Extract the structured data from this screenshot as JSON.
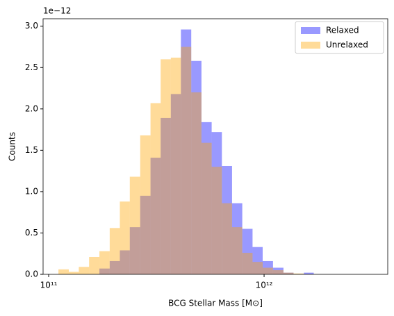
{
  "chart_data": {
    "type": "histogram",
    "xlabel": "BCG Stellar Mass [M⊙]",
    "ylabel": "Counts",
    "y_offset_label": "1e−12",
    "log_x": true,
    "legend": "upper right",
    "alpha": 0.4,
    "bins": [
      111000000000.0,
      124000000000.0,
      138000000000.0,
      154000000000.0,
      172000000000.0,
      192000000000.0,
      214000000000.0,
      238000000000.0,
      266000000000.0,
      297000000000.0,
      331000000000.0,
      369000000000.0,
      411000000000.0,
      459000000000.0,
      512000000000.0,
      571000000000.0,
      637000000000.0,
      710000000000.0,
      792000000000.0,
      884000000000.0,
      985000000000.0,
      1100000000000.0,
      1230000000000.0,
      1370000000000.0,
      1530000000000.0,
      1700000000000.0
    ],
    "series": [
      {
        "name": "Relaxed",
        "color": "#0000ff",
        "values": [
          0,
          0,
          0,
          0,
          0.07,
          0.16,
          0.29,
          0.57,
          0.95,
          1.41,
          1.89,
          2.18,
          2.96,
          2.58,
          1.84,
          1.72,
          1.31,
          0.86,
          0.55,
          0.33,
          0.16,
          0.08,
          0.02,
          0,
          0.02
        ]
      },
      {
        "name": "Unrelaxed",
        "color": "#ffa500",
        "values": [
          0.06,
          0.03,
          0.09,
          0.21,
          0.28,
          0.56,
          0.88,
          1.18,
          1.68,
          2.07,
          2.6,
          2.62,
          2.75,
          2.2,
          1.59,
          1.3,
          0.86,
          0.57,
          0.26,
          0.15,
          0.08,
          0.05,
          0.02,
          0.01,
          0
        ]
      }
    ],
    "xlim": [
      94200000000.0,
      3750000000000.0
    ],
    "xticks": [
      {
        "value": 100000000000.0,
        "label": "10¹¹"
      },
      {
        "value": 1000000000000.0,
        "label": "10¹²"
      }
    ],
    "ylim": [
      0,
      3.09
    ],
    "yticks": [
      {
        "value": 0,
        "label": "0.0"
      },
      {
        "value": 0.5,
        "label": "0.5"
      },
      {
        "value": 1,
        "label": "1.0"
      },
      {
        "value": 1.5,
        "label": "1.5"
      },
      {
        "value": 2,
        "label": "2.0"
      },
      {
        "value": 2.5,
        "label": "2.5"
      },
      {
        "value": 3,
        "label": "3.0"
      }
    ]
  }
}
